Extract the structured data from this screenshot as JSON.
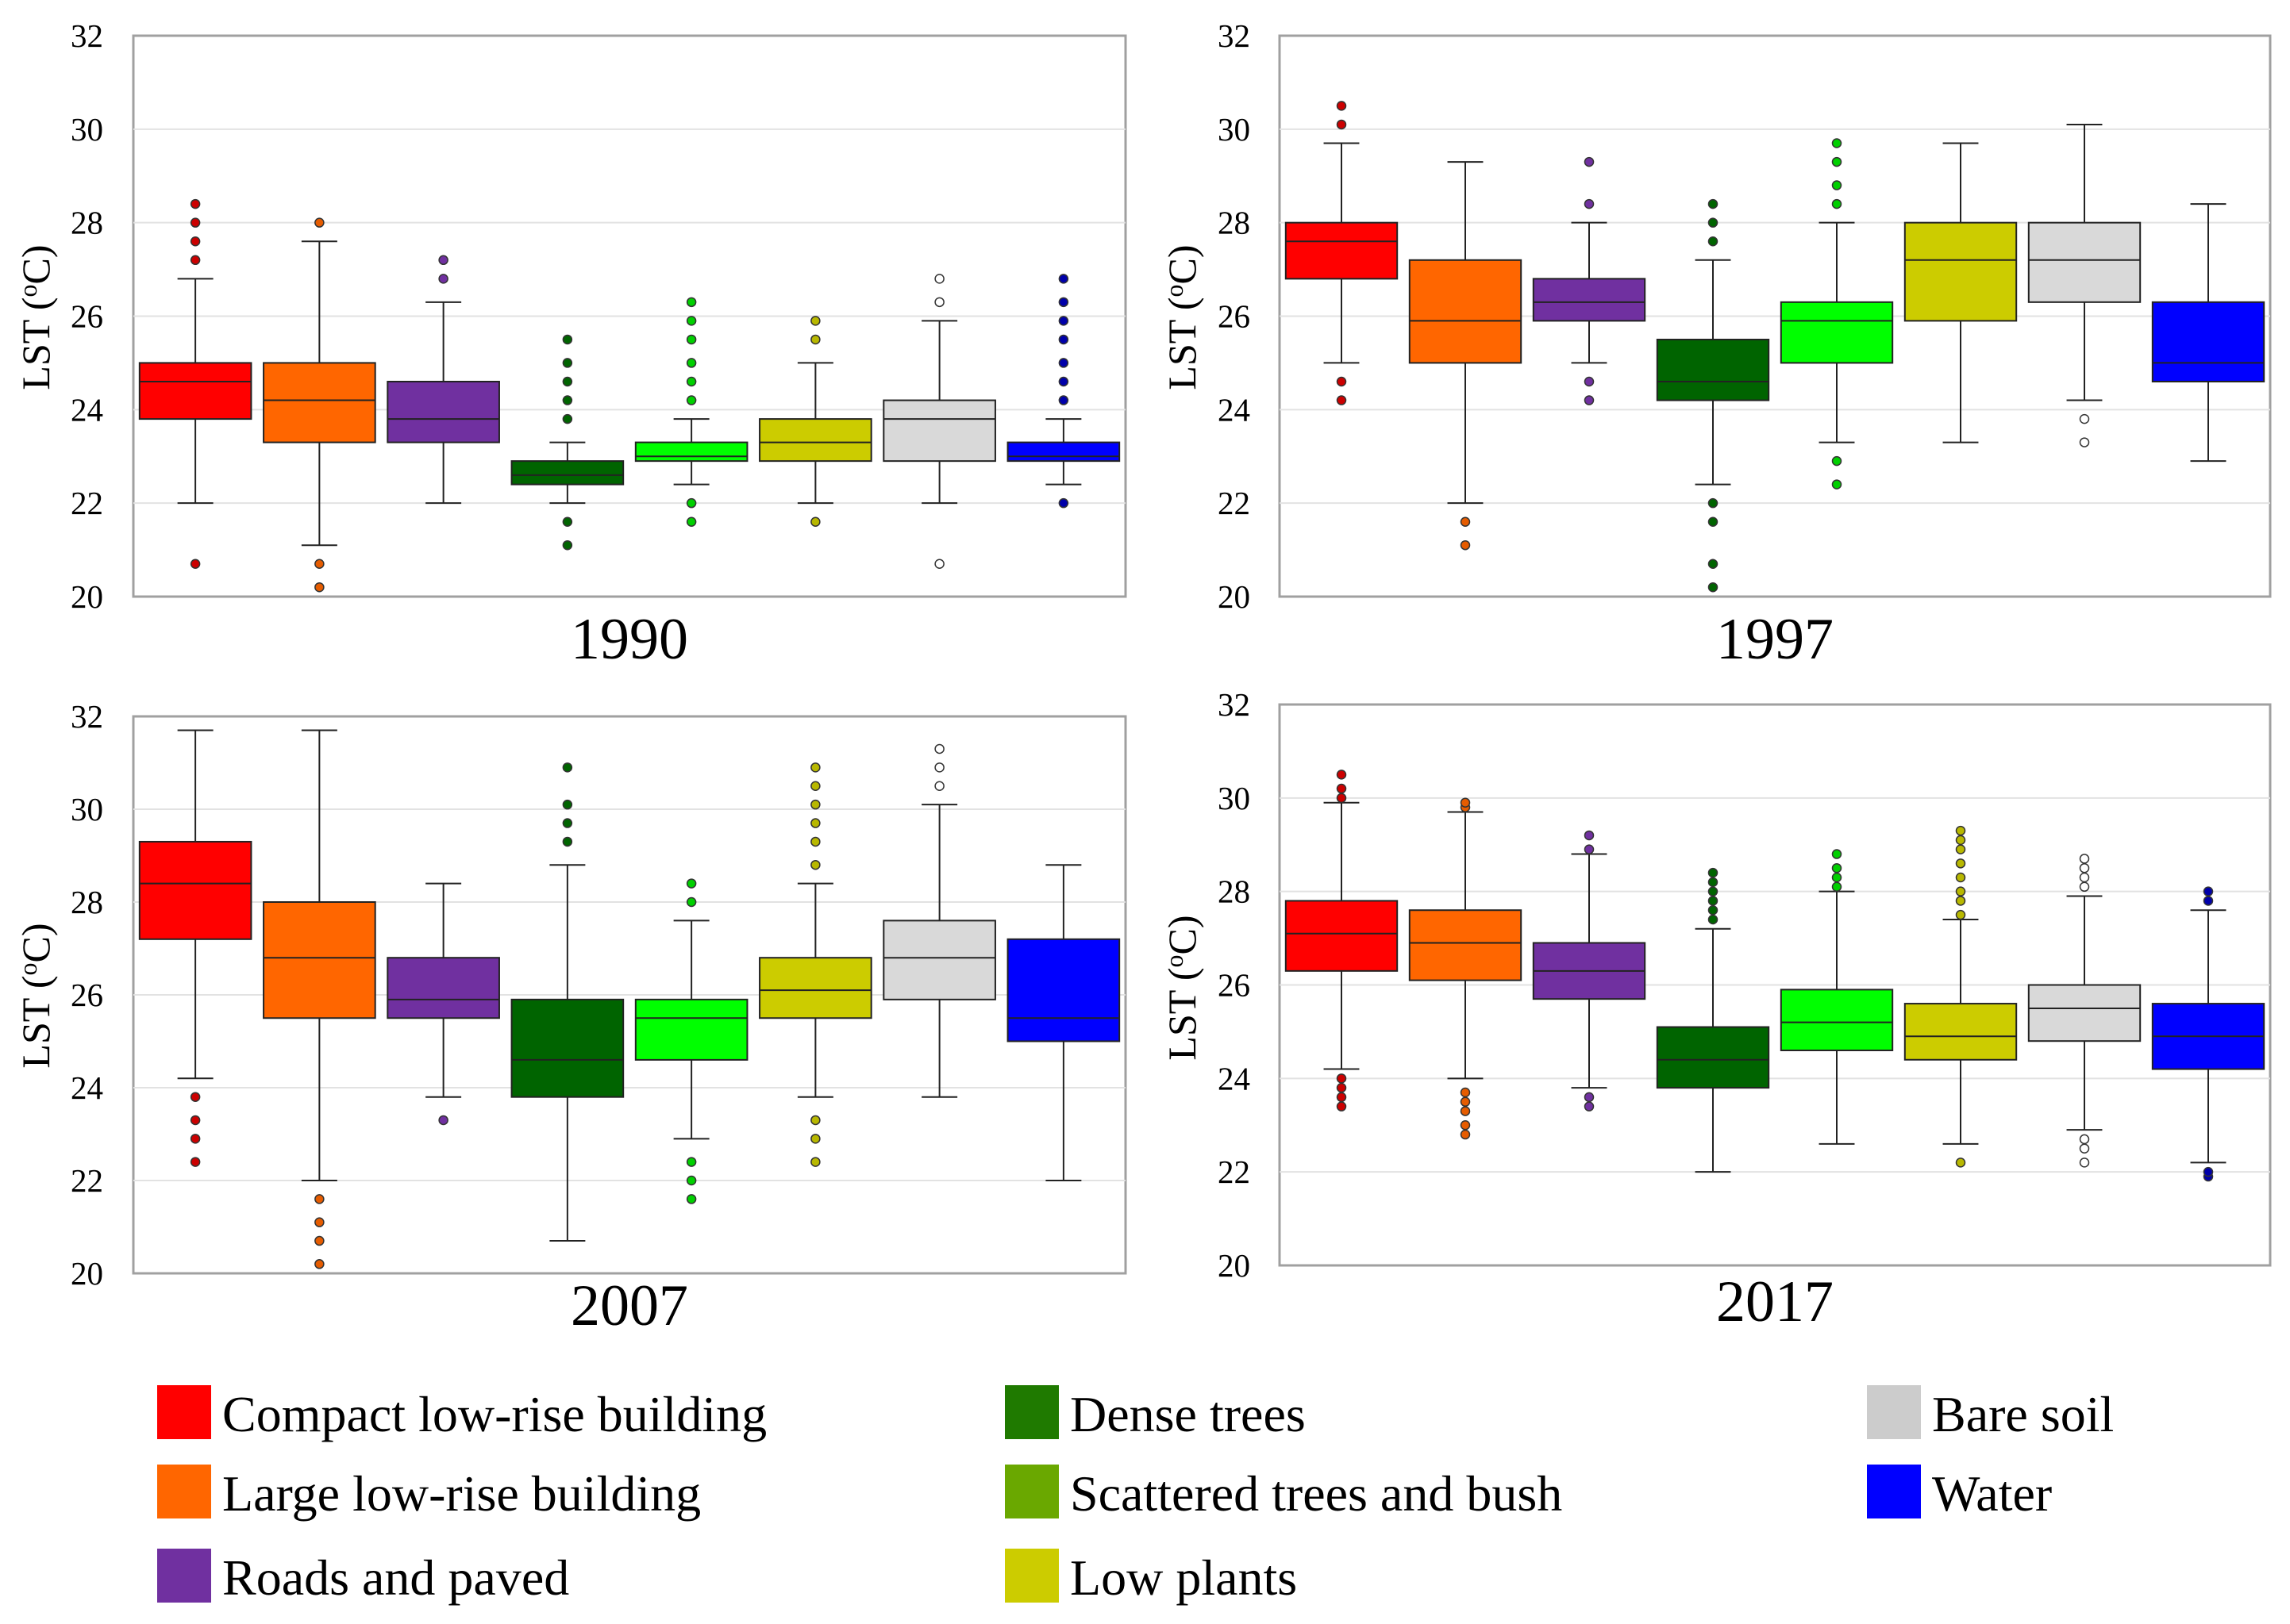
{
  "chart_data": {
    "type": "box",
    "ylabel_main": "LST (",
    "ylabel_sup": "o",
    "ylabel_tail": "C)",
    "ylim": [
      20,
      32
    ],
    "yticks": [
      20,
      22,
      24,
      26,
      28,
      30,
      32
    ],
    "grid": true,
    "categories": [
      {
        "name": "Compact low-rise building",
        "color": "#ff0000",
        "outlier": "#cc0000",
        "legend_color": "#ff0000"
      },
      {
        "name": "Large low-rise building",
        "color": "#ff6600",
        "outlier": "#e65c00",
        "legend_color": "#ff6600"
      },
      {
        "name": "Roads and paved",
        "color": "#7030a0",
        "outlier": "#7030a0",
        "legend_color": "#7030a0"
      },
      {
        "name": "Dense trees",
        "color": "#006400",
        "outlier": "#006400",
        "legend_color": "#1f7a00"
      },
      {
        "name": "Scattered trees and bush",
        "color": "#00ff00",
        "outlier": "#00d000",
        "legend_color": "#6aa800"
      },
      {
        "name": "Low plants",
        "color": "#cccc00",
        "outlier": "#b8b800",
        "legend_color": "#cccc00"
      },
      {
        "name": "Bare soil",
        "color": "#d9d9d9",
        "outlier": "#ffffff",
        "legend_color": "#cccccc"
      },
      {
        "name": "Water",
        "color": "#0000ff",
        "outlier": "#0000aa",
        "legend_color": "#0000ff"
      }
    ],
    "panels": [
      {
        "title": "1990",
        "series": [
          {
            "whisker_low": 22.0,
            "q1": 23.8,
            "median": 24.6,
            "q3": 25.0,
            "whisker_high": 26.8,
            "outliers": [
              20.7,
              27.2,
              27.6,
              28.0,
              28.4
            ]
          },
          {
            "whisker_low": 21.1,
            "q1": 23.3,
            "median": 24.2,
            "q3": 25.0,
            "whisker_high": 27.6,
            "outliers": [
              20.2,
              20.7,
              28.0
            ]
          },
          {
            "whisker_low": 22.0,
            "q1": 23.3,
            "median": 23.8,
            "q3": 24.6,
            "whisker_high": 26.3,
            "outliers": [
              26.8,
              27.2
            ]
          },
          {
            "whisker_low": 22.0,
            "q1": 22.4,
            "median": 22.6,
            "q3": 22.9,
            "whisker_high": 23.3,
            "outliers": [
              21.1,
              21.6,
              23.8,
              24.2,
              24.6,
              25.0,
              25.5
            ]
          },
          {
            "whisker_low": 22.4,
            "q1": 22.9,
            "median": 23.0,
            "q3": 23.3,
            "whisker_high": 23.8,
            "outliers": [
              21.6,
              22.0,
              24.2,
              24.6,
              25.0,
              25.5,
              25.9,
              26.3
            ]
          },
          {
            "whisker_low": 22.0,
            "q1": 22.9,
            "median": 23.3,
            "q3": 23.8,
            "whisker_high": 25.0,
            "outliers": [
              21.6,
              25.5,
              25.9
            ]
          },
          {
            "whisker_low": 22.0,
            "q1": 22.9,
            "median": 23.8,
            "q3": 24.2,
            "whisker_high": 25.9,
            "outliers": [
              20.7,
              26.3,
              26.8
            ]
          },
          {
            "whisker_low": 22.4,
            "q1": 22.9,
            "median": 23.0,
            "q3": 23.3,
            "whisker_high": 23.8,
            "outliers": [
              22.0,
              24.2,
              24.6,
              25.0,
              25.5,
              25.9,
              26.3,
              26.8
            ]
          }
        ]
      },
      {
        "title": "1997",
        "series": [
          {
            "whisker_low": 25.0,
            "q1": 26.8,
            "median": 27.6,
            "q3": 28.0,
            "whisker_high": 29.7,
            "outliers": [
              24.2,
              24.6,
              30.1,
              30.5
            ]
          },
          {
            "whisker_low": 22.0,
            "q1": 25.0,
            "median": 25.9,
            "q3": 27.2,
            "whisker_high": 29.3,
            "outliers": [
              21.1,
              21.6
            ]
          },
          {
            "whisker_low": 25.0,
            "q1": 25.9,
            "median": 26.3,
            "q3": 26.8,
            "whisker_high": 28.0,
            "outliers": [
              24.2,
              24.6,
              28.4,
              29.3
            ]
          },
          {
            "whisker_low": 22.4,
            "q1": 24.2,
            "median": 24.6,
            "q3": 25.5,
            "whisker_high": 27.2,
            "outliers": [
              20.2,
              20.7,
              21.6,
              22.0,
              27.6,
              28.0,
              28.4
            ]
          },
          {
            "whisker_low": 23.3,
            "q1": 25.0,
            "median": 25.9,
            "q3": 26.3,
            "whisker_high": 28.0,
            "outliers": [
              22.4,
              22.9,
              28.4,
              28.8,
              29.3,
              29.7
            ]
          },
          {
            "whisker_low": 23.3,
            "q1": 25.9,
            "median": 27.2,
            "q3": 28.0,
            "whisker_high": 29.7,
            "outliers": []
          },
          {
            "whisker_low": 24.2,
            "q1": 26.3,
            "median": 27.2,
            "q3": 28.0,
            "whisker_high": 30.1,
            "outliers": [
              23.3,
              23.8
            ]
          },
          {
            "whisker_low": 22.9,
            "q1": 24.6,
            "median": 25.0,
            "q3": 26.3,
            "whisker_high": 28.4,
            "outliers": []
          }
        ]
      },
      {
        "title": "2007",
        "series": [
          {
            "whisker_low": 24.2,
            "q1": 27.2,
            "median": 28.4,
            "q3": 29.3,
            "whisker_high": 31.7,
            "outliers": [
              22.4,
              22.9,
              23.3,
              23.8
            ]
          },
          {
            "whisker_low": 22.0,
            "q1": 25.5,
            "median": 26.8,
            "q3": 28.0,
            "whisker_high": 31.7,
            "outliers": [
              20.2,
              20.7,
              21.1,
              21.6
            ]
          },
          {
            "whisker_low": 23.8,
            "q1": 25.5,
            "median": 25.9,
            "q3": 26.8,
            "whisker_high": 28.4,
            "outliers": [
              23.3
            ]
          },
          {
            "whisker_low": 20.7,
            "q1": 23.8,
            "median": 24.6,
            "q3": 25.9,
            "whisker_high": 28.8,
            "outliers": [
              29.3,
              29.7,
              30.1,
              30.9
            ]
          },
          {
            "whisker_low": 22.9,
            "q1": 24.6,
            "median": 25.5,
            "q3": 25.9,
            "whisker_high": 27.6,
            "outliers": [
              21.6,
              22.0,
              22.4,
              28.0,
              28.4
            ]
          },
          {
            "whisker_low": 23.8,
            "q1": 25.5,
            "median": 26.1,
            "q3": 26.8,
            "whisker_high": 28.4,
            "outliers": [
              22.4,
              22.9,
              23.3,
              28.8,
              29.3,
              29.7,
              30.1,
              30.5,
              30.9
            ]
          },
          {
            "whisker_low": 23.8,
            "q1": 25.9,
            "median": 26.8,
            "q3": 27.6,
            "whisker_high": 30.1,
            "outliers": [
              30.5,
              30.9,
              31.3
            ]
          },
          {
            "whisker_low": 22.0,
            "q1": 25.0,
            "median": 25.5,
            "q3": 27.2,
            "whisker_high": 28.8,
            "outliers": []
          }
        ]
      },
      {
        "title": "2017",
        "series": [
          {
            "whisker_low": 24.2,
            "q1": 26.3,
            "median": 27.1,
            "q3": 27.8,
            "whisker_high": 29.9,
            "outliers": [
              23.4,
              23.6,
              23.8,
              24.0,
              30.0,
              30.2,
              30.5
            ]
          },
          {
            "whisker_low": 24.0,
            "q1": 26.1,
            "median": 26.9,
            "q3": 27.6,
            "whisker_high": 29.7,
            "outliers": [
              22.8,
              23.0,
              23.3,
              23.5,
              23.7,
              29.8,
              29.9
            ]
          },
          {
            "whisker_low": 23.8,
            "q1": 25.7,
            "median": 26.3,
            "q3": 26.9,
            "whisker_high": 28.8,
            "outliers": [
              23.4,
              23.6,
              28.9,
              29.2
            ]
          },
          {
            "whisker_low": 22.0,
            "q1": 23.8,
            "median": 24.4,
            "q3": 25.1,
            "whisker_high": 27.2,
            "outliers": [
              27.4,
              27.6,
              27.8,
              28.0,
              28.2,
              28.4
            ]
          },
          {
            "whisker_low": 22.6,
            "q1": 24.6,
            "median": 25.2,
            "q3": 25.9,
            "whisker_high": 28.0,
            "outliers": [
              28.1,
              28.3,
              28.5,
              28.8
            ]
          },
          {
            "whisker_low": 22.6,
            "q1": 24.4,
            "median": 24.9,
            "q3": 25.6,
            "whisker_high": 27.4,
            "outliers": [
              22.2,
              27.5,
              27.8,
              28.0,
              28.3,
              28.6,
              28.9,
              29.1,
              29.3
            ]
          },
          {
            "whisker_low": 22.9,
            "q1": 24.8,
            "median": 25.5,
            "q3": 26.0,
            "whisker_high": 27.9,
            "outliers": [
              22.2,
              22.5,
              22.7,
              28.1,
              28.3,
              28.5,
              28.7
            ]
          },
          {
            "whisker_low": 22.2,
            "q1": 24.2,
            "median": 24.9,
            "q3": 25.6,
            "whisker_high": 27.6,
            "outliers": [
              21.9,
              22.0,
              27.8,
              28.0
            ]
          }
        ]
      }
    ]
  }
}
